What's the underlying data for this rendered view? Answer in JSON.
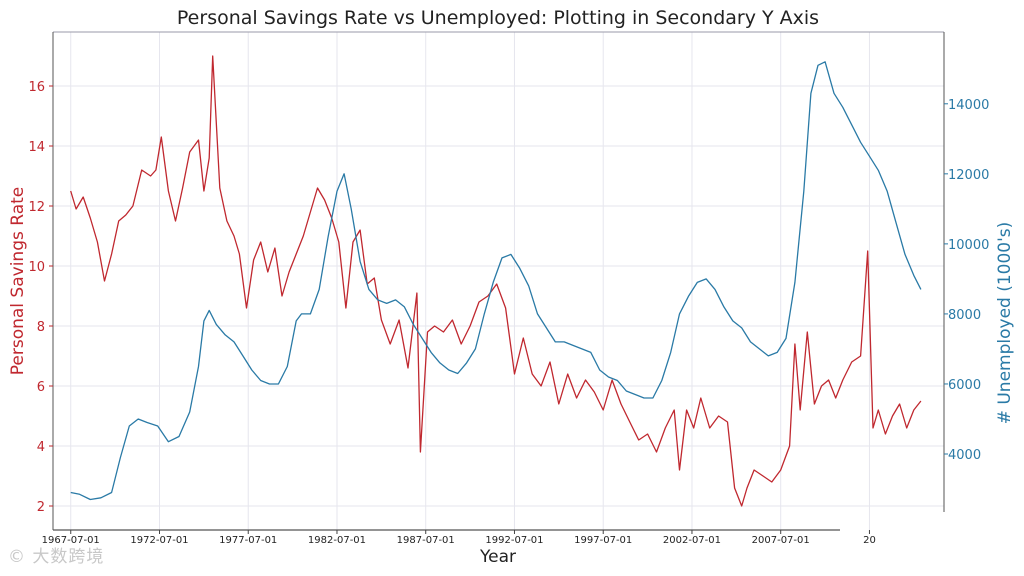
{
  "chart_data": {
    "type": "line",
    "title": "Personal Savings Rate vs Unemployed: Plotting in Secondary Y Axis",
    "xlabel": "Year",
    "ylabel_left": "Personal Savings Rate",
    "ylabel_right": "# Unemployed (1000's)",
    "x_tick_labels": [
      "1967-07-01",
      "1972-07-01",
      "1977-07-01",
      "1982-07-01",
      "1987-07-01",
      "1992-07-01",
      "1997-07-01",
      "2002-07-01",
      "2007-07-01",
      "20"
    ],
    "y_left_ticks": [
      2,
      4,
      6,
      8,
      10,
      12,
      14,
      16
    ],
    "y_right_ticks": [
      4000,
      6000,
      8000,
      10000,
      12000,
      14000
    ],
    "xlim": [
      1966.5,
      2016.7
    ],
    "ylim_left": [
      1.2,
      17.8
    ],
    "ylim_right": [
      1830,
      16050
    ],
    "grid": true,
    "colors": {
      "left": "#c0282f",
      "right": "#2a7aa6"
    },
    "series": [
      {
        "name": "Personal Savings Rate",
        "axis": "left",
        "x": [
          1967.5,
          1967.8,
          1968.2,
          1968.6,
          1969.0,
          1969.4,
          1969.8,
          1970.2,
          1970.6,
          1971.0,
          1971.5,
          1972.0,
          1972.3,
          1972.6,
          1973.0,
          1973.4,
          1973.8,
          1974.2,
          1974.7,
          1975.0,
          1975.3,
          1975.5,
          1975.9,
          1976.3,
          1976.7,
          1977.0,
          1977.4,
          1977.8,
          1978.2,
          1978.6,
          1979.0,
          1979.4,
          1979.8,
          1980.2,
          1980.6,
          1981.0,
          1981.4,
          1981.8,
          1982.2,
          1982.6,
          1983.0,
          1983.4,
          1983.8,
          1984.2,
          1984.6,
          1985.0,
          1985.5,
          1986.0,
          1986.5,
          1987.0,
          1987.2,
          1987.6,
          1988.0,
          1988.5,
          1989.0,
          1989.5,
          1990.0,
          1990.5,
          1991.0,
          1991.5,
          1992.0,
          1992.5,
          1993.0,
          1993.5,
          1994.0,
          1994.5,
          1995.0,
          1995.5,
          1996.0,
          1996.5,
          1997.0,
          1997.5,
          1998.0,
          1998.5,
          1999.0,
          1999.5,
          2000.0,
          2000.5,
          2001.0,
          2001.5,
          2001.8,
          2002.2,
          2002.6,
          2003.0,
          2003.5,
          2004.0,
          2004.5,
          2004.9,
          2005.3,
          2005.6,
          2006.0,
          2006.5,
          2007.0,
          2007.5,
          2008.0,
          2008.3,
          2008.6,
          2009.0,
          2009.4,
          2009.8,
          2010.2,
          2010.6,
          2011.0,
          2011.5,
          2012.0,
          2012.4,
          2012.7,
          2013.0,
          2013.4,
          2013.8,
          2014.2,
          2014.6,
          2015.0,
          2015.4
        ],
        "values": [
          12.5,
          11.9,
          12.3,
          11.6,
          10.8,
          9.5,
          10.4,
          11.5,
          11.7,
          12.0,
          13.2,
          13.0,
          13.2,
          14.3,
          12.5,
          11.5,
          12.6,
          13.8,
          14.2,
          12.5,
          13.6,
          17.0,
          12.6,
          11.5,
          11.0,
          10.4,
          8.6,
          10.2,
          10.8,
          9.8,
          10.6,
          9.0,
          9.8,
          10.4,
          11.0,
          11.8,
          12.6,
          12.2,
          11.6,
          10.8,
          8.6,
          10.8,
          11.2,
          9.4,
          9.6,
          8.2,
          7.4,
          8.2,
          6.6,
          9.1,
          3.8,
          7.8,
          8.0,
          7.8,
          8.2,
          7.4,
          8.0,
          8.8,
          9.0,
          9.4,
          8.6,
          6.4,
          7.6,
          6.4,
          6.0,
          6.8,
          5.4,
          6.4,
          5.6,
          6.2,
          5.8,
          5.2,
          6.2,
          5.4,
          4.8,
          4.2,
          4.4,
          3.8,
          4.6,
          5.2,
          3.2,
          5.2,
          4.6,
          5.6,
          4.6,
          5.0,
          4.8,
          2.6,
          2.0,
          2.6,
          3.2,
          3.0,
          2.8,
          3.2,
          4.0,
          7.4,
          5.2,
          7.8,
          5.4,
          6.0,
          6.2,
          5.6,
          6.2,
          6.8,
          7.0,
          10.5,
          4.6,
          5.2,
          4.4,
          5.0,
          5.4,
          4.6,
          5.2,
          5.5
        ]
      },
      {
        "name": "# Unemployed (1000's)",
        "axis": "right",
        "x": [
          1967.5,
          1968.0,
          1968.6,
          1969.2,
          1969.8,
          1970.3,
          1970.8,
          1971.3,
          1971.8,
          1972.4,
          1973.0,
          1973.6,
          1974.2,
          1974.7,
          1975.0,
          1975.3,
          1975.7,
          1976.2,
          1976.7,
          1977.2,
          1977.7,
          1978.2,
          1978.7,
          1979.2,
          1979.7,
          1980.2,
          1980.5,
          1981.0,
          1981.5,
          1982.0,
          1982.5,
          1982.9,
          1983.3,
          1983.8,
          1984.3,
          1984.8,
          1985.3,
          1985.8,
          1986.3,
          1986.8,
          1987.3,
          1987.8,
          1988.3,
          1988.8,
          1989.3,
          1989.8,
          1990.3,
          1990.8,
          1991.3,
          1991.8,
          1992.3,
          1992.8,
          1993.3,
          1993.8,
          1994.3,
          1994.8,
          1995.3,
          1995.8,
          1996.3,
          1996.8,
          1997.3,
          1997.8,
          1998.3,
          1998.8,
          1999.3,
          1999.8,
          2000.3,
          2000.8,
          2001.3,
          2001.8,
          2002.3,
          2002.8,
          2003.3,
          2003.8,
          2004.3,
          2004.8,
          2005.3,
          2005.8,
          2006.3,
          2006.8,
          2007.3,
          2007.8,
          2008.3,
          2008.8,
          2009.2,
          2009.6,
          2010.0,
          2010.5,
          2011.0,
          2011.5,
          2012.0,
          2012.5,
          2013.0,
          2013.5,
          2014.0,
          2014.5,
          2015.0,
          2015.4
        ],
        "values": [
          2900,
          2850,
          2700,
          2750,
          2900,
          3900,
          4800,
          5000,
          4900,
          4800,
          4350,
          4500,
          5200,
          6500,
          7800,
          8100,
          7700,
          7400,
          7200,
          6800,
          6400,
          6100,
          6000,
          6000,
          6500,
          7800,
          8000,
          8000,
          8700,
          10200,
          11500,
          12000,
          11000,
          9500,
          8700,
          8400,
          8300,
          8400,
          8200,
          7700,
          7300,
          6900,
          6600,
          6400,
          6300,
          6600,
          7000,
          8000,
          8900,
          9600,
          9700,
          9300,
          8800,
          8000,
          7600,
          7200,
          7200,
          7100,
          7000,
          6900,
          6400,
          6200,
          6100,
          5800,
          5700,
          5600,
          5600,
          6100,
          6900,
          8000,
          8500,
          8900,
          9000,
          8700,
          8200,
          7800,
          7600,
          7200,
          7000,
          6800,
          6900,
          7300,
          8900,
          11500,
          14300,
          15100,
          15200,
          14300,
          13900,
          13400,
          12900,
          12500,
          12100,
          11500,
          10600,
          9700,
          9100,
          8700
        ]
      }
    ]
  },
  "watermark": "© 大数跨境"
}
